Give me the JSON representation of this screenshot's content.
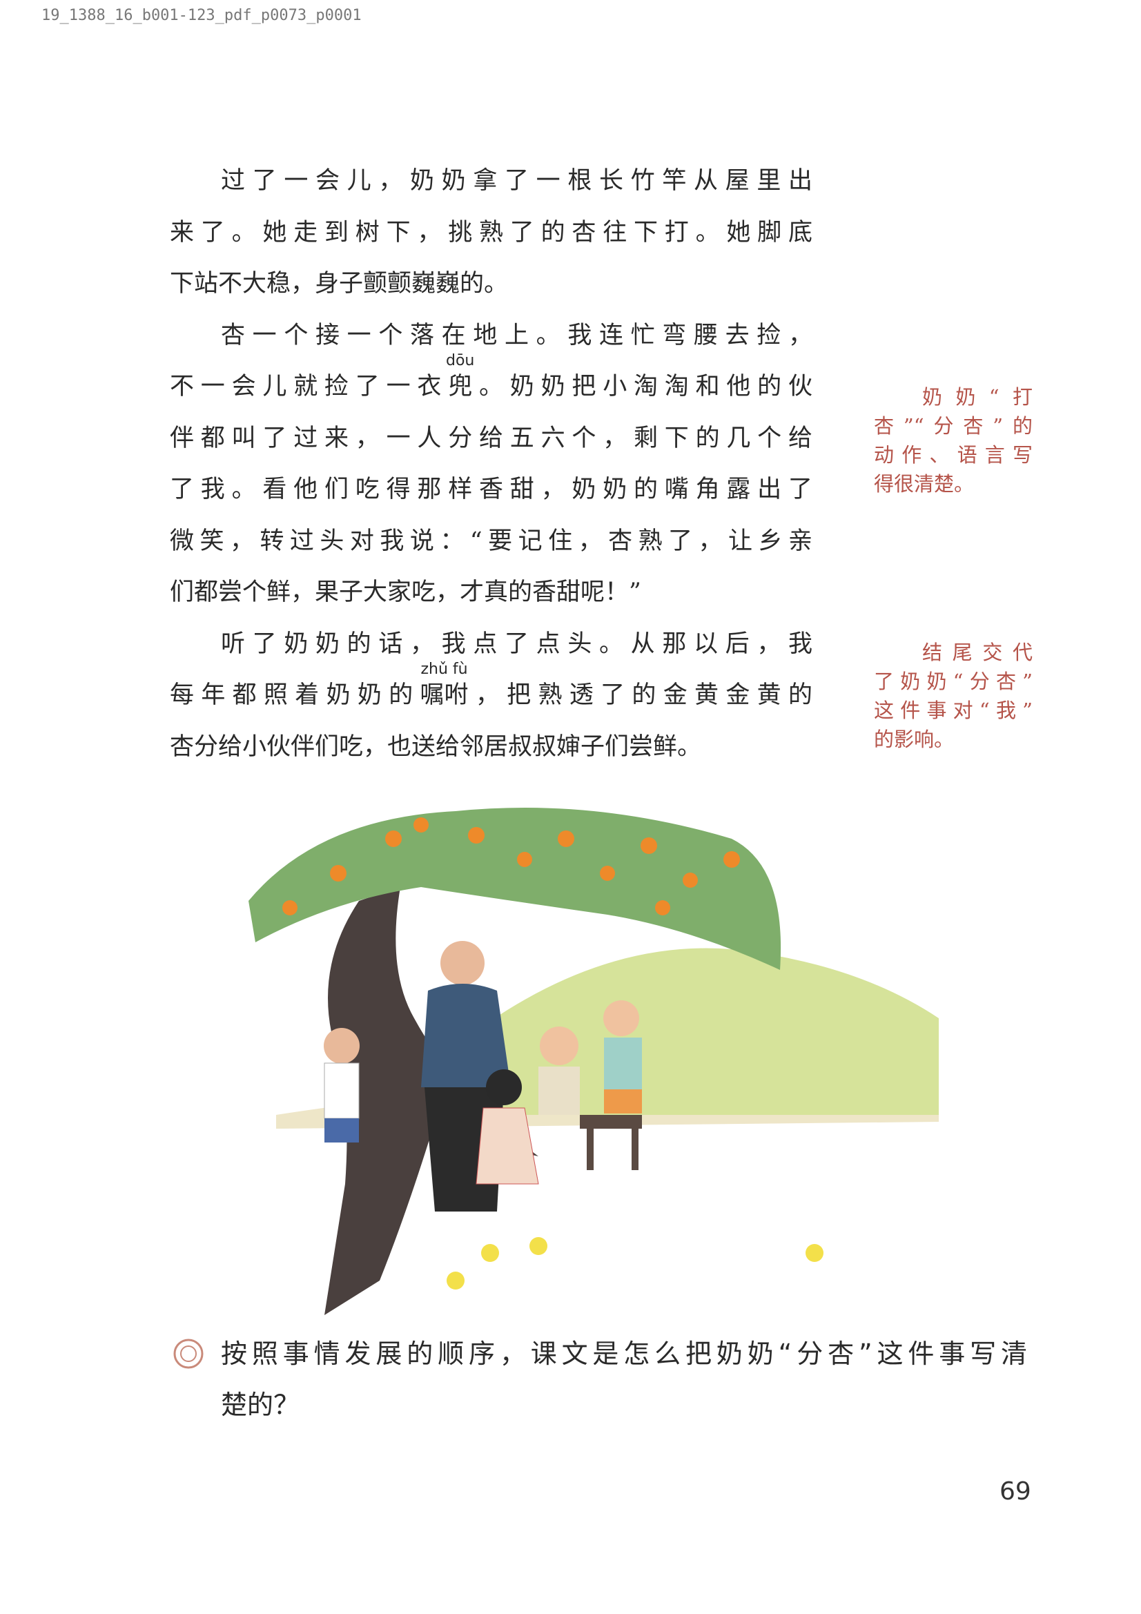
{
  "header": {
    "file_label": "19_1388_16_b001-123_pdf_p0073_p0001"
  },
  "paragraphs": [
    {
      "lines": [
        {
          "text": "过了一会儿，奶奶拿了一根长竹竿从屋里出"
        },
        {
          "text": "来了。她走到树下，挑熟了的杏往下打。她脚底"
        },
        {
          "text": "下站不大稳，身子颤颤巍巍的。"
        }
      ]
    },
    {
      "lines": [
        {
          "text": "杏一个接一个落在地上。我连忙弯腰去捡，"
        },
        {
          "before": "不一会儿就捡了一衣",
          "base": "兜",
          "ruby": "dōu",
          "after": "。奶奶把小淘淘和他的伙"
        },
        {
          "text": "伴都叫了过来，一人分给五六个，剩下的几个给"
        },
        {
          "text": "了我。看他们吃得那样香甜，奶奶的嘴角露出了"
        },
        {
          "text": "微笑，转过头对我说：“要记住，杏熟了，让乡亲"
        },
        {
          "text": "们都尝个鲜，果子大家吃，才真的香甜呢！”"
        }
      ]
    },
    {
      "lines": [
        {
          "text": "听了奶奶的话，我点了点头。从那以后，我"
        },
        {
          "before": "每年都照着奶奶的",
          "base": "嘱咐",
          "ruby": "zhǔ fù",
          "after": "，把熟透了的金黄金黄的"
        },
        {
          "text": "杏分给小伙伴们吃，也送给邻居叔叔婶子们尝鲜。"
        }
      ]
    }
  ],
  "side_notes": [
    {
      "lines": [
        "奶奶“打",
        "杏”“分杏”的",
        "动作、语言写",
        "得很清楚。"
      ]
    },
    {
      "lines": [
        "结尾交代",
        "了奶奶“分杏”",
        "这件事对“我”",
        "的影响。"
      ]
    }
  ],
  "question": {
    "lines": [
      "按照事情发展的顺序，课文是怎么把奶奶“分杏”这件事写清",
      "楚的？"
    ]
  },
  "page_number": "69"
}
